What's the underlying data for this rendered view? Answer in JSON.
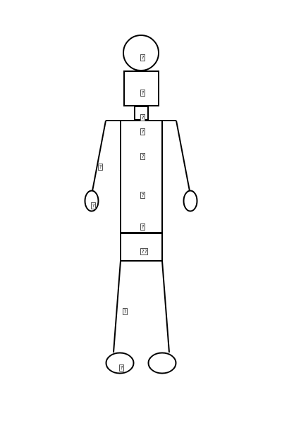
{
  "figure": {
    "subject": "stick-figure-body-diagram",
    "stroke_color": "#000000",
    "background_color": "#ffffff"
  },
  "markers": {
    "head": "?",
    "face": "?",
    "neck": "?",
    "chest_upper": "?",
    "chest": "?",
    "abdomen": "?",
    "lower_torso": "?",
    "pelvis": "??",
    "right_arm": "?",
    "right_hand": "?",
    "right_thigh": "?",
    "right_foot": "?"
  }
}
